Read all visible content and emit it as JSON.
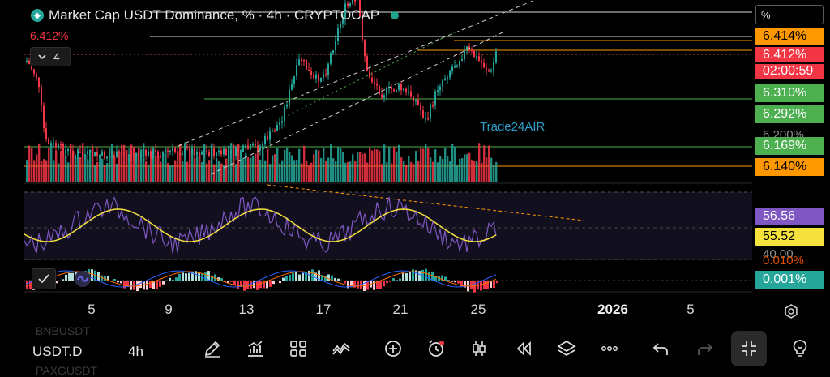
{
  "header": {
    "title": "Market Cap USDT Dominance, % · 4h · CRYPTOCAP",
    "current_value": "6.412%",
    "interval_count": "4",
    "percent_mode": "%"
  },
  "price_labels": [
    {
      "text": "6.414%",
      "bg": "#ff9800",
      "fg": "#000000"
    },
    {
      "text": "6.412%",
      "bg": "#f23645",
      "fg": "#ffffff"
    },
    {
      "text": "02:00:59",
      "bg": "#f23645",
      "fg": "#ffffff"
    },
    {
      "text": "6.310%",
      "bg": "#4caf50",
      "fg": "#ffffff"
    },
    {
      "text": "6.292%",
      "bg": "#4caf50",
      "fg": "#ffffff"
    },
    {
      "text": "6.169%",
      "bg": "#4caf50",
      "fg": "#ffffff"
    },
    {
      "text": "6.140%",
      "bg": "#ff9800",
      "fg": "#000000"
    }
  ],
  "axis_ghost_labels": {
    "price": "6.200%",
    "rsi": "40.00",
    "macd": "0.010%"
  },
  "rsi_labels": [
    {
      "text": "56.56",
      "bg": "#7e57c2",
      "fg": "#ffffff"
    },
    {
      "text": "55.52",
      "bg": "#f5e23c",
      "fg": "#000000"
    }
  ],
  "macd_label": {
    "text": "0.001%",
    "bg": "#26a69a",
    "fg": "#ffffff"
  },
  "watermark": "Trade24AIR",
  "x_axis": [
    "5",
    "9",
    "13",
    "17",
    "21",
    "25",
    "2026",
    "5"
  ],
  "footer": {
    "symbol": "USDT.D",
    "timeframe": "4h",
    "ghost_rows": [
      "BNBUSDT",
      "PAXGUSDT"
    ],
    "toolbar_icons": [
      "pencil-icon",
      "chart-type-icon",
      "grid-icon",
      "indicators-icon",
      "plus-icon",
      "alert-clock-icon",
      "candles-icon",
      "replay-icon",
      "layers-icon",
      "more-icon",
      "undo-icon",
      "redo-icon",
      "collapse-icon",
      "lightbulb-icon"
    ]
  },
  "colors": {
    "up": "#26a69a",
    "down": "#f23645",
    "rsi": "#7e57c2",
    "rsi_ma": "#f5e23c",
    "orange": "#ff9800"
  }
}
